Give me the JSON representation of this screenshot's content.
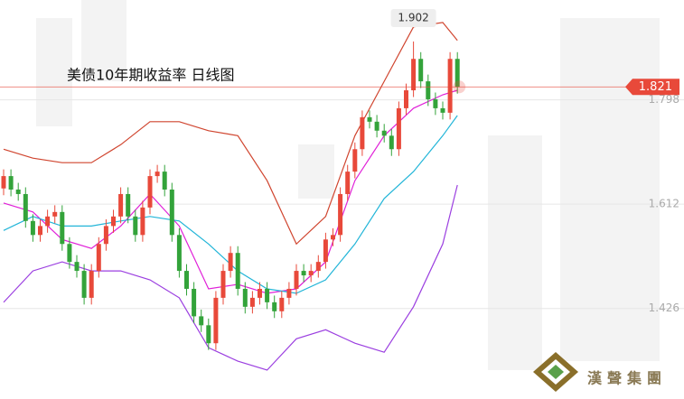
{
  "chart_data": {
    "type": "candlestick",
    "title": "美债10年期收益率 日线图",
    "watermark": "漢聲集團",
    "ylim": [
      1.271,
      1.976
    ],
    "yticks": [
      1.426,
      1.612,
      1.798
    ],
    "grid": true,
    "up_color": "#e8493a",
    "down_color": "#33a33a",
    "last_price": 1.821,
    "last_price_color": "#e8493a",
    "high_annotation": 1.902,
    "categories": [
      null,
      null,
      null,
      null,
      null,
      null,
      null,
      null,
      null,
      null,
      null,
      null,
      null,
      null,
      null,
      null,
      null,
      null,
      null,
      null,
      null,
      null,
      null,
      null,
      null,
      null,
      null,
      null,
      null,
      null,
      null,
      null,
      null,
      null,
      null,
      null,
      null,
      null,
      null,
      null,
      null,
      null,
      null,
      null,
      null,
      null,
      null,
      null,
      null,
      null,
      null,
      null,
      null,
      null,
      null,
      null,
      null,
      null,
      null,
      null,
      null,
      null,
      null
    ],
    "open": [
      1.64,
      1.662,
      1.638,
      1.63,
      1.582,
      1.557,
      1.573,
      1.59,
      1.598,
      1.541,
      1.509,
      1.493,
      1.445,
      1.493,
      1.541,
      1.573,
      1.59,
      1.63,
      1.59,
      1.557,
      1.606,
      1.662,
      1.67,
      1.638,
      1.557,
      1.493,
      1.461,
      1.412,
      1.396,
      1.364,
      1.445,
      1.493,
      1.525,
      1.461,
      1.429,
      1.445,
      1.461,
      1.437,
      1.421,
      1.445,
      1.461,
      1.493,
      1.485,
      1.493,
      1.509,
      1.549,
      1.557,
      1.63,
      1.67,
      1.71,
      1.767,
      1.759,
      1.743,
      1.734,
      1.71,
      1.783,
      1.815,
      1.871,
      1.831,
      1.799,
      1.783,
      1.775,
      1.871
    ],
    "high": [
      1.674,
      1.674,
      1.65,
      1.642,
      1.594,
      1.585,
      1.602,
      1.61,
      1.61,
      1.553,
      1.521,
      1.505,
      1.505,
      1.553,
      1.585,
      1.602,
      1.642,
      1.642,
      1.602,
      1.618,
      1.674,
      1.682,
      1.682,
      1.65,
      1.569,
      1.505,
      1.473,
      1.424,
      1.408,
      1.457,
      1.505,
      1.537,
      1.537,
      1.473,
      1.457,
      1.473,
      1.473,
      1.449,
      1.457,
      1.473,
      1.505,
      1.505,
      1.505,
      1.521,
      1.561,
      1.569,
      1.642,
      1.682,
      1.722,
      1.779,
      1.779,
      1.771,
      1.755,
      1.746,
      1.795,
      1.827,
      1.902,
      1.883,
      1.843,
      1.811,
      1.795,
      1.883,
      1.883
    ],
    "low": [
      1.628,
      1.626,
      1.618,
      1.57,
      1.545,
      1.545,
      1.561,
      1.578,
      1.529,
      1.497,
      1.481,
      1.433,
      1.433,
      1.481,
      1.529,
      1.561,
      1.578,
      1.578,
      1.545,
      1.545,
      1.594,
      1.65,
      1.626,
      1.545,
      1.481,
      1.449,
      1.4,
      1.384,
      1.352,
      1.352,
      1.433,
      1.481,
      1.449,
      1.417,
      1.417,
      1.433,
      1.425,
      1.409,
      1.409,
      1.433,
      1.449,
      1.473,
      1.473,
      1.481,
      1.497,
      1.537,
      1.545,
      1.618,
      1.658,
      1.698,
      1.747,
      1.731,
      1.722,
      1.698,
      1.698,
      1.771,
      1.803,
      1.819,
      1.787,
      1.771,
      1.763,
      1.763,
      1.809
    ],
    "close": [
      1.662,
      1.638,
      1.63,
      1.582,
      1.557,
      1.573,
      1.59,
      1.598,
      1.541,
      1.509,
      1.493,
      1.445,
      1.493,
      1.541,
      1.573,
      1.59,
      1.63,
      1.59,
      1.557,
      1.606,
      1.662,
      1.67,
      1.638,
      1.557,
      1.493,
      1.461,
      1.412,
      1.396,
      1.364,
      1.445,
      1.493,
      1.525,
      1.461,
      1.429,
      1.445,
      1.461,
      1.437,
      1.421,
      1.445,
      1.461,
      1.493,
      1.485,
      1.493,
      1.509,
      1.549,
      1.557,
      1.63,
      1.67,
      1.71,
      1.767,
      1.759,
      1.743,
      1.734,
      1.71,
      1.783,
      1.815,
      1.871,
      1.831,
      1.799,
      1.783,
      1.775,
      1.871,
      1.821
    ],
    "lines": [
      {
        "color": "#d0452f",
        "x": [
          0,
          4,
          8,
          12,
          16,
          20,
          24,
          28,
          32,
          36,
          40,
          44,
          48,
          52,
          56,
          60,
          62
        ],
        "values": [
          1.71,
          1.694,
          1.686,
          1.686,
          1.718,
          1.759,
          1.759,
          1.743,
          1.734,
          1.654,
          1.541,
          1.59,
          1.734,
          1.831,
          1.928,
          1.936,
          1.904
        ]
      },
      {
        "color": "#e020d8",
        "x": [
          0,
          4,
          8,
          12,
          16,
          20,
          24,
          28,
          32,
          36,
          40,
          44,
          48,
          52,
          56,
          60,
          62
        ],
        "values": [
          1.614,
          1.598,
          1.549,
          1.533,
          1.573,
          1.63,
          1.573,
          1.461,
          1.469,
          1.453,
          1.461,
          1.509,
          1.654,
          1.734,
          1.783,
          1.807,
          1.815
        ]
      },
      {
        "color": "#22b5d8",
        "x": [
          0,
          4,
          8,
          12,
          16,
          20,
          24,
          28,
          32,
          36,
          40,
          44,
          48,
          52,
          56,
          60,
          62
        ],
        "values": [
          1.565,
          1.59,
          1.573,
          1.573,
          1.582,
          1.59,
          1.582,
          1.541,
          1.493,
          1.461,
          1.453,
          1.477,
          1.541,
          1.622,
          1.67,
          1.734,
          1.77
        ]
      },
      {
        "color": "#9b3fe0",
        "x": [
          0,
          4,
          8,
          12,
          16,
          20,
          24,
          28,
          32,
          36,
          40,
          44,
          48,
          52,
          56,
          60,
          62
        ],
        "values": [
          1.437,
          1.493,
          1.509,
          1.493,
          1.493,
          1.477,
          1.445,
          1.356,
          1.332,
          1.316,
          1.372,
          1.388,
          1.364,
          1.348,
          1.429,
          1.541,
          1.646
        ]
      }
    ]
  }
}
